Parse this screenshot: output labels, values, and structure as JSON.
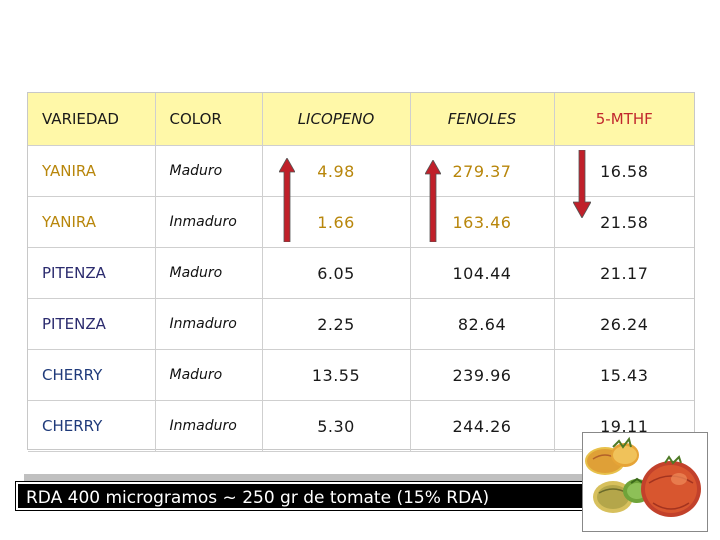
{
  "table": {
    "headers": {
      "variedad": "VARIEDAD",
      "color": "COLOR",
      "licopeno": "LICOPENO",
      "fenoles": "FENOLES",
      "mthf": "5-MTHF"
    },
    "rows": [
      {
        "variedad": "YANIRA",
        "color": "Maduro",
        "licopeno": "4.98",
        "fenoles": "279.37",
        "mthf": "16.58"
      },
      {
        "variedad": "YANIRA",
        "color": "Inmaduro",
        "licopeno": "1.66",
        "fenoles": "163.46",
        "mthf": "21.58"
      },
      {
        "variedad": "PITENZA",
        "color": "Maduro",
        "licopeno": "6.05",
        "fenoles": "104.44",
        "mthf": "21.17"
      },
      {
        "variedad": "PITENZA",
        "color": "Inmaduro",
        "licopeno": "2.25",
        "fenoles": "82.64",
        "mthf": "26.24"
      },
      {
        "variedad": "CHERRY",
        "color": "Maduro",
        "licopeno": "13.55",
        "fenoles": "239.96",
        "mthf": "15.43"
      },
      {
        "variedad": "CHERRY",
        "color": "Inmaduro",
        "licopeno": "5.30",
        "fenoles": "244.26",
        "mthf": "19.11"
      }
    ]
  },
  "arrows": {
    "licopeno": "up-arrow",
    "fenoles": "up-arrow",
    "mthf": "down-arrow",
    "color": "#c0202a"
  },
  "note": {
    "text": "RDA 400 microgramos ~ 250 gr de tomate (15% RDA)"
  },
  "image": {
    "icon": "tomatoes-photo"
  }
}
